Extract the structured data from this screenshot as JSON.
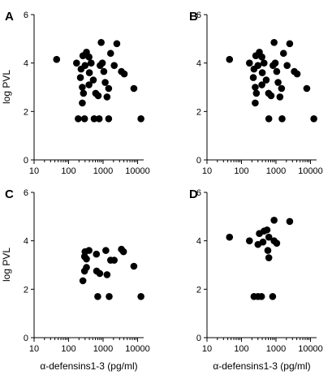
{
  "chart_data": [
    {
      "type": "scatter",
      "panel_label": "A",
      "xlabel": "",
      "ylabel": "log PVL",
      "xscale": "log",
      "xlim": [
        10,
        15000
      ],
      "ylim": [
        0,
        6
      ],
      "xticks": [
        "10",
        "100",
        "1000",
        "10000"
      ],
      "yticks": [
        "0",
        "2",
        "4",
        "6"
      ],
      "points": [
        [
          45,
          4.15
        ],
        [
          170,
          4.0
        ],
        [
          230,
          3.75
        ],
        [
          260,
          4.3
        ],
        [
          300,
          3.9
        ],
        [
          220,
          3.4
        ],
        [
          250,
          3.0
        ],
        [
          270,
          2.75
        ],
        [
          250,
          2.35
        ],
        [
          330,
          4.45
        ],
        [
          390,
          4.25
        ],
        [
          450,
          4.0
        ],
        [
          400,
          3.6
        ],
        [
          520,
          3.3
        ],
        [
          390,
          3.1
        ],
        [
          610,
          2.75
        ],
        [
          720,
          2.65
        ],
        [
          880,
          4.85
        ],
        [
          950,
          4.0
        ],
        [
          820,
          3.9
        ],
        [
          1050,
          3.65
        ],
        [
          1150,
          3.2
        ],
        [
          1450,
          2.95
        ],
        [
          1650,
          4.4
        ],
        [
          2500,
          4.8
        ],
        [
          2100,
          3.9
        ],
        [
          3400,
          3.65
        ],
        [
          4100,
          3.55
        ],
        [
          7800,
          2.95
        ],
        [
          1300,
          2.6
        ],
        [
          190,
          1.7
        ],
        [
          290,
          1.7
        ],
        [
          550,
          1.7
        ],
        [
          770,
          1.7
        ],
        [
          1450,
          1.7
        ],
        [
          12500,
          1.7
        ]
      ]
    },
    {
      "type": "scatter",
      "panel_label": "B",
      "xlabel": "",
      "ylabel": "",
      "xscale": "log",
      "xlim": [
        10,
        15000
      ],
      "ylim": [
        0,
        6
      ],
      "xticks": [
        "10",
        "100",
        "1000",
        "10000"
      ],
      "yticks": [
        "0",
        "2",
        "4",
        "6"
      ],
      "points": [
        [
          45,
          4.15
        ],
        [
          170,
          4.0
        ],
        [
          230,
          3.75
        ],
        [
          260,
          4.3
        ],
        [
          300,
          3.9
        ],
        [
          220,
          3.4
        ],
        [
          250,
          3.0
        ],
        [
          270,
          2.75
        ],
        [
          250,
          2.35
        ],
        [
          330,
          4.45
        ],
        [
          390,
          4.25
        ],
        [
          450,
          4.0
        ],
        [
          400,
          3.6
        ],
        [
          520,
          3.3
        ],
        [
          390,
          3.1
        ],
        [
          610,
          2.75
        ],
        [
          720,
          2.65
        ],
        [
          880,
          4.85
        ],
        [
          950,
          4.0
        ],
        [
          820,
          3.9
        ],
        [
          1050,
          3.65
        ],
        [
          1150,
          3.2
        ],
        [
          1450,
          2.95
        ],
        [
          1650,
          4.4
        ],
        [
          2500,
          4.8
        ],
        [
          2100,
          3.9
        ],
        [
          3400,
          3.65
        ],
        [
          4100,
          3.55
        ],
        [
          7800,
          2.95
        ],
        [
          1300,
          2.6
        ],
        [
          620,
          1.7
        ],
        [
          1500,
          1.7
        ],
        [
          12500,
          1.7
        ]
      ]
    },
    {
      "type": "scatter",
      "panel_label": "C",
      "xlabel": "α-defensins1-3 (pg/ml)",
      "ylabel": "log PVL",
      "xscale": "log",
      "xlim": [
        10,
        15000
      ],
      "ylim": [
        0,
        6
      ],
      "xticks": [
        "10",
        "100",
        "1000",
        "10000"
      ],
      "yticks": [
        "0",
        "2",
        "4",
        "6"
      ],
      "points": [
        [
          300,
          3.55
        ],
        [
          390,
          3.6
        ],
        [
          290,
          3.35
        ],
        [
          330,
          3.25
        ],
        [
          330,
          2.9
        ],
        [
          290,
          2.75
        ],
        [
          260,
          2.35
        ],
        [
          640,
          3.45
        ],
        [
          1200,
          3.6
        ],
        [
          3400,
          3.65
        ],
        [
          3900,
          3.55
        ],
        [
          1650,
          3.2
        ],
        [
          2100,
          3.2
        ],
        [
          7800,
          2.95
        ],
        [
          650,
          2.75
        ],
        [
          800,
          2.65
        ],
        [
          1300,
          2.6
        ],
        [
          700,
          1.7
        ],
        [
          1500,
          1.7
        ],
        [
          12500,
          1.7
        ]
      ]
    },
    {
      "type": "scatter",
      "panel_label": "D",
      "xlabel": "α-defensins1-3 (pg/ml)",
      "ylabel": "",
      "xscale": "log",
      "xlim": [
        10,
        15000
      ],
      "ylim": [
        0,
        6
      ],
      "xticks": [
        "10",
        "100",
        "1000",
        "10000"
      ],
      "yticks": [
        "0",
        "2",
        "4",
        "6"
      ],
      "points": [
        [
          45,
          4.15
        ],
        [
          170,
          4.0
        ],
        [
          330,
          4.3
        ],
        [
          450,
          4.4
        ],
        [
          550,
          4.45
        ],
        [
          300,
          3.85
        ],
        [
          420,
          3.95
        ],
        [
          620,
          4.15
        ],
        [
          880,
          4.85
        ],
        [
          2500,
          4.8
        ],
        [
          880,
          4.0
        ],
        [
          1050,
          3.9
        ],
        [
          580,
          3.6
        ],
        [
          620,
          3.3
        ],
        [
          230,
          1.7
        ],
        [
          300,
          1.7
        ],
        [
          380,
          1.7
        ],
        [
          800,
          1.7
        ]
      ]
    }
  ]
}
